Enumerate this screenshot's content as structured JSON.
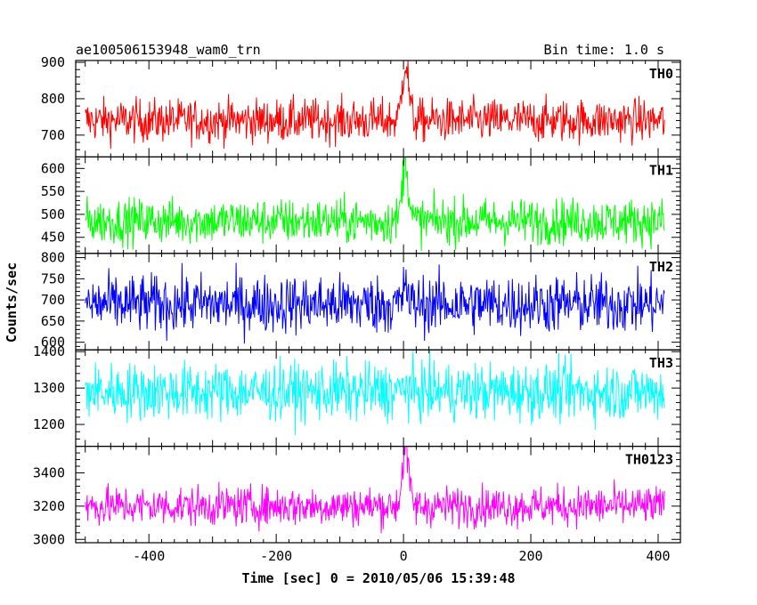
{
  "chart_data": {
    "type": "line",
    "title": "ae100506153948_wam0_trn",
    "bin_time": "Bin time: 1.0 s",
    "xlabel": "Time [sec] 0 = 2010/05/06 15:39:48",
    "ylabel": "Counts/sec",
    "xlim": [
      -515,
      435
    ],
    "xticks": [
      -400,
      -200,
      0,
      200,
      400
    ],
    "x_start": -500,
    "x_end": 410,
    "panels": [
      {
        "name": "TH0",
        "color": "#ff0000",
        "ylim": [
          640,
          905
        ],
        "yticks": [
          700,
          800,
          900
        ],
        "mean": 740,
        "noise": 30,
        "peak": 900,
        "peak_width": 5,
        "x_start": -500,
        "x_end": 410
      },
      {
        "name": "TH1",
        "color": "#00ff00",
        "ylim": [
          415,
          625
        ],
        "yticks": [
          450,
          500,
          550,
          600
        ],
        "mean": 485,
        "noise": 25,
        "peak": 615,
        "peak_width": 5,
        "x_start": -500,
        "x_end": 410
      },
      {
        "name": "TH2",
        "color": "#0000ff",
        "ylim": [
          582,
          810
        ],
        "yticks": [
          600,
          650,
          700,
          750,
          800
        ],
        "mean": 690,
        "noise": 35,
        "peak": 760,
        "peak_width": 2,
        "x_start": -500,
        "x_end": 410
      },
      {
        "name": "TH3",
        "color": "#00ffff",
        "ylim": [
          1140,
          1405
        ],
        "yticks": [
          1200,
          1300,
          1400
        ],
        "mean": 1290,
        "noise": 40,
        "peak": 1320,
        "peak_width": 2,
        "x_start": -500,
        "x_end": 410
      },
      {
        "name": "TH0123",
        "color": "#ff00ff",
        "ylim": [
          2980,
          3560
        ],
        "yticks": [
          3000,
          3200,
          3400
        ],
        "mean": 3200,
        "noise": 60,
        "peak": 3550,
        "peak_width": 5,
        "x_start": -500,
        "x_end": 410
      }
    ]
  }
}
